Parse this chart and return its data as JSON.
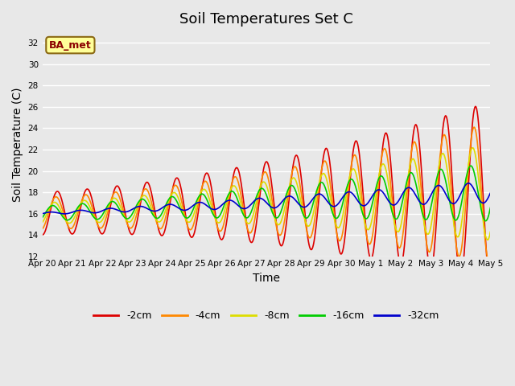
{
  "title": "Soil Temperatures Set C",
  "xlabel": "Time",
  "ylabel": "Soil Temperature (C)",
  "ylim": [
    12,
    33
  ],
  "yticks": [
    12,
    14,
    16,
    18,
    20,
    22,
    24,
    26,
    28,
    30,
    32
  ],
  "annotation": "BA_met",
  "series_labels": [
    "-2cm",
    "-4cm",
    "-8cm",
    "-16cm",
    "-32cm"
  ],
  "series_colors": [
    "#dd0000",
    "#ff8800",
    "#dddd00",
    "#00cc00",
    "#0000cc"
  ],
  "background_color": "#e8e8e8",
  "plot_bg_color": "#e8e8e8",
  "grid_color": "#ffffff",
  "title_fontsize": 13,
  "axis_fontsize": 10,
  "tick_labels": [
    "Apr 20",
    "Apr 21",
    "Apr 22",
    "Apr 23",
    "Apr 24",
    "Apr 25",
    "Apr 26",
    "Apr 27",
    "Apr 28",
    "Apr 29",
    "Apr 30",
    "May 1",
    "May 2",
    "May 3",
    "May 4",
    "May 5"
  ],
  "n_days": 15
}
